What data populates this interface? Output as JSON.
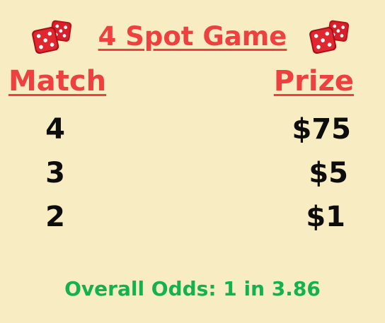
{
  "title": "4 Spot Game",
  "headers": {
    "match": "Match",
    "prize": "Prize"
  },
  "rows": [
    {
      "match": "4",
      "prize": "$75"
    },
    {
      "match": "3",
      "prize": "$5"
    },
    {
      "match": "2",
      "prize": "$1"
    }
  ],
  "odds": "Overall Odds: 1 in 3.86",
  "icons": {
    "left": "dice-icon",
    "right": "dice-icon"
  },
  "colors": {
    "background": "#f8ecc2",
    "accent_red": "#ef4040",
    "odds_green": "#13b24e",
    "dice_red": "#d81f2a"
  }
}
